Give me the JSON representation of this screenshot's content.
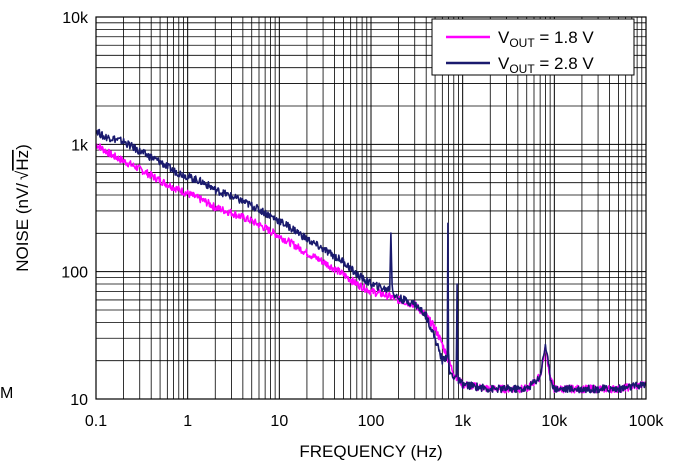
{
  "left_clip_text": "M",
  "chart_data": {
    "type": "line",
    "title": "",
    "xlabel": "FREQUENCY (Hz)",
    "ylabel": "NOISE (nV/√Hz)",
    "ylabel_main": "NOISE (nV/",
    "ylabel_root": "Hz",
    "ylabel_close": ")",
    "x_scale": "log",
    "y_scale": "log",
    "xlim": [
      0.1,
      100000
    ],
    "ylim": [
      10,
      10000
    ],
    "x_ticks": [
      0.1,
      1,
      10,
      100,
      1000,
      10000,
      100000
    ],
    "x_tick_labels": [
      "0.1",
      "1",
      "10",
      "100",
      "1k",
      "10k",
      "100k"
    ],
    "y_ticks": [
      10,
      100,
      1000,
      10000
    ],
    "y_tick_labels": [
      "10",
      "100",
      "1k",
      "10k"
    ],
    "grid": true,
    "legend_position": "top-right",
    "series": [
      {
        "name": "VOUT = 1.8 V",
        "legend_main": "V",
        "legend_sub": "OUT",
        "legend_rest": " = 1.8 V",
        "color": "#ff00ff",
        "x": [
          0.1,
          0.15,
          0.2,
          0.3,
          0.5,
          0.7,
          1,
          1.5,
          2,
          3,
          5,
          7,
          10,
          15,
          20,
          30,
          50,
          70,
          100,
          150,
          200,
          300,
          400,
          500,
          600,
          700,
          800,
          1000,
          2000,
          5000,
          7000,
          8000,
          9000,
          10000,
          20000,
          50000,
          100000
        ],
        "y": [
          1000,
          820,
          740,
          640,
          520,
          460,
          410,
          360,
          320,
          290,
          250,
          220,
          190,
          160,
          140,
          120,
          95,
          80,
          70,
          65,
          60,
          55,
          45,
          36,
          27,
          20,
          16,
          13,
          12,
          12,
          15,
          25,
          15,
          12,
          12,
          12,
          13
        ]
      },
      {
        "name": "VOUT = 2.8 V",
        "legend_main": "V",
        "legend_sub": "OUT",
        "legend_rest": " = 2.8 V",
        "color": "#1a1a6e",
        "x": [
          0.1,
          0.12,
          0.15,
          0.2,
          0.3,
          0.5,
          0.7,
          1,
          1.5,
          2,
          3,
          5,
          7,
          10,
          15,
          20,
          30,
          50,
          70,
          100,
          150,
          160,
          165,
          170,
          175,
          180,
          200,
          300,
          400,
          500,
          600,
          680,
          690,
          700,
          710,
          720,
          800,
          850,
          870,
          880,
          900,
          1000,
          2000,
          5000,
          7000,
          8000,
          9000,
          10000,
          20000,
          50000,
          100000
        ],
        "y": [
          1300,
          1150,
          1120,
          1050,
          880,
          730,
          620,
          560,
          500,
          440,
          390,
          330,
          290,
          250,
          210,
          180,
          150,
          120,
          95,
          80,
          72,
          75,
          200,
          80,
          70,
          65,
          62,
          56,
          45,
          30,
          20,
          22,
          240,
          24,
          18,
          16,
          15,
          15,
          80,
          15,
          14,
          13,
          12,
          12,
          15,
          27,
          15,
          12,
          12,
          12,
          13
        ]
      }
    ]
  }
}
